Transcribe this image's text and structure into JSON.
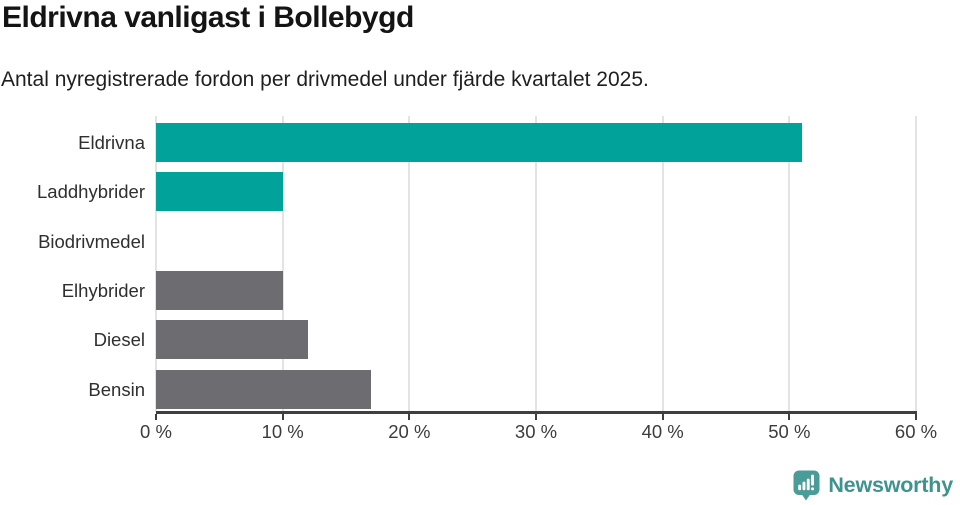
{
  "header": {
    "title": "Eldrivna vanligast i Bollebygd",
    "subtitle": "Antal nyregistrerade fordon per drivmedel under fjärde kvartalet 2025."
  },
  "chart_data": {
    "type": "bar",
    "orientation": "horizontal",
    "title": "Eldrivna vanligast i Bollebygd",
    "subtitle": "Antal nyregistrerade fordon per drivmedel under fjärde kvartalet 2025.",
    "categories": [
      "Eldrivna",
      "Laddhybrider",
      "Biodrivmedel",
      "Elhybrider",
      "Diesel",
      "Bensin"
    ],
    "values": [
      51,
      10,
      0,
      10,
      12,
      17
    ],
    "bar_colors": [
      "#00a29a",
      "#00a29a",
      "#00a29a",
      "#6c6c71",
      "#6c6c71",
      "#6c6c71"
    ],
    "unit": "%",
    "xlim": [
      0,
      60
    ],
    "x_ticks": [
      0,
      10,
      20,
      30,
      40,
      50,
      60
    ],
    "x_tick_labels": [
      "0 %",
      "10 %",
      "20 %",
      "30 %",
      "40 %",
      "50 %",
      "60 %"
    ],
    "grid": true,
    "legend": false
  },
  "colors": {
    "bar_teal": "#00a29a",
    "bar_gray": "#6c6c71",
    "gridline": "#e3e3e3",
    "axis": "#3f3f3f",
    "logo_icon": "#4a9c98",
    "logo_text": "#3e938f"
  },
  "footer": {
    "brand": "Newsworthy"
  }
}
